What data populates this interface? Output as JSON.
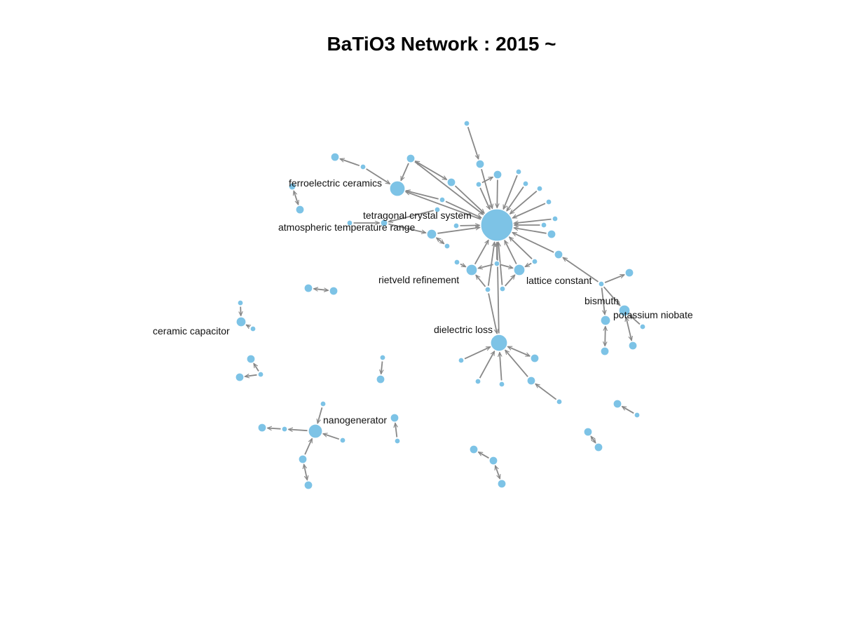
{
  "title": "BaTiO3 Network : 2015 ~",
  "colors": {
    "node": "#7dc3e6",
    "edge": "#888888",
    "text": "#111111"
  },
  "labels": {
    "ferroelectric_ceramics": "ferroelectric ceramics",
    "tetragonal_crystal_system": "tetragonal crystal system",
    "atmospheric_temperature_range": "atmospheric temperature range",
    "rietveld_refinement": "rietveld refinement",
    "lattice_constant": "lattice constant",
    "bismuth": "bismuth",
    "potassium_niobate": "potassium niobate",
    "dielectric_loss": "dielectric loss",
    "ceramic_capacitor": "ceramic capacitor",
    "nanogenerator": "nanogenerator"
  }
}
